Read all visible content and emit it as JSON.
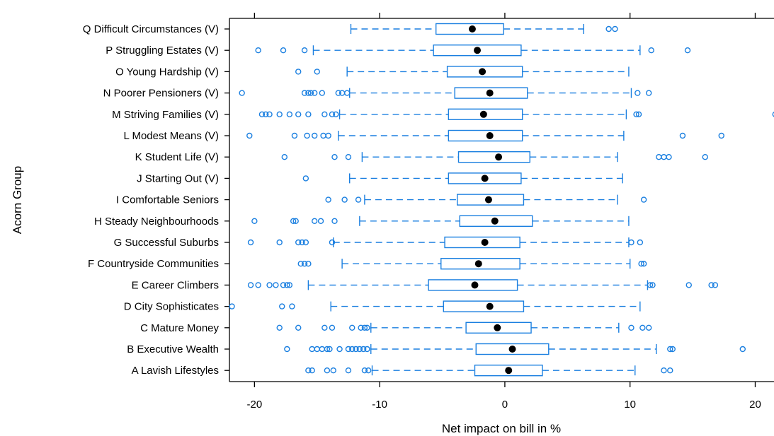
{
  "chart_data": {
    "type": "boxplot",
    "xlabel": "Net impact on bill in %",
    "ylabel": "Acorn Group",
    "xlim": [
      -22,
      21.5
    ],
    "xticks": [
      -20,
      -10,
      0,
      10,
      20
    ],
    "xtick_labels": [
      "-20",
      "-10",
      "0",
      "10",
      "20"
    ],
    "colors": {
      "box": "#1a7fe0",
      "median": "#000000",
      "frame": "#000000"
    },
    "categories": [
      "Q Difficult Circumstances (V)",
      "P Struggling Estates (V)",
      "O Young Hardship (V)",
      "N Poorer Pensioners (V)",
      "M Striving Families (V)",
      "L Modest Means (V)",
      "K Student Life (V)",
      "J Starting Out (V)",
      "I Comfortable Seniors",
      "H Steady Neighbourhoods",
      "G Successful Suburbs",
      "F Countryside Communities",
      "E Career Climbers",
      "D City Sophisticates",
      "C Mature Money",
      "B Executive Wealth",
      "A Lavish Lifestyles"
    ],
    "boxes": [
      {
        "whisker_low": -12.3,
        "q1": -5.5,
        "median": -2.6,
        "q3": -0.1,
        "whisker_high": 6.3,
        "outliers": [
          8.3,
          8.8
        ]
      },
      {
        "whisker_low": -15.3,
        "q1": -5.7,
        "median": -2.2,
        "q3": 1.3,
        "whisker_high": 10.8,
        "outliers": [
          -19.7,
          -17.7,
          -16.0,
          11.7,
          14.6
        ]
      },
      {
        "whisker_low": -12.6,
        "q1": -4.6,
        "median": -1.8,
        "q3": 1.4,
        "whisker_high": 9.9,
        "outliers": [
          -16.5,
          -15.0
        ]
      },
      {
        "whisker_low": -12.4,
        "q1": -4.0,
        "median": -1.2,
        "q3": 1.8,
        "whisker_high": 10.1,
        "outliers": [
          -21.0,
          -16.0,
          -15.7,
          -15.5,
          -15.2,
          -14.6,
          -13.3,
          -13.0,
          -12.6,
          10.6,
          11.5
        ]
      },
      {
        "whisker_low": -13.2,
        "q1": -4.5,
        "median": -1.7,
        "q3": 1.4,
        "whisker_high": 9.7,
        "outliers": [
          -19.4,
          -19.1,
          -18.8,
          -18.0,
          -17.2,
          -16.5,
          -15.7,
          -14.4,
          -13.8,
          -13.5,
          10.5,
          10.7,
          21.6
        ]
      },
      {
        "whisker_low": -13.3,
        "q1": -4.5,
        "median": -1.2,
        "q3": 1.4,
        "whisker_high": 9.5,
        "outliers": [
          -20.4,
          -16.8,
          -15.8,
          -15.2,
          -14.5,
          -14.1,
          14.2,
          17.3
        ]
      },
      {
        "whisker_low": -11.4,
        "q1": -3.7,
        "median": -0.5,
        "q3": 2.0,
        "whisker_high": 9.0,
        "outliers": [
          -17.6,
          -13.6,
          -12.5,
          12.3,
          12.7,
          13.1,
          16.0
        ]
      },
      {
        "whisker_low": -12.4,
        "q1": -4.5,
        "median": -1.6,
        "q3": 1.3,
        "whisker_high": 9.4,
        "outliers": [
          -15.9
        ]
      },
      {
        "whisker_low": -11.2,
        "q1": -3.8,
        "median": -1.3,
        "q3": 1.5,
        "whisker_high": 9.0,
        "outliers": [
          -14.1,
          -12.8,
          -11.7,
          11.1
        ]
      },
      {
        "whisker_low": -11.6,
        "q1": -3.6,
        "median": -0.8,
        "q3": 2.2,
        "whisker_high": 9.9,
        "outliers": [
          -20.0,
          -16.9,
          -16.7,
          -15.2,
          -14.7,
          -13.6
        ]
      },
      {
        "whisker_low": -13.7,
        "q1": -4.8,
        "median": -1.6,
        "q3": 1.2,
        "whisker_high": 9.9,
        "outliers": [
          -20.3,
          -18.0,
          -16.5,
          -16.2,
          -15.9,
          -13.8,
          10.1,
          10.8
        ]
      },
      {
        "whisker_low": -13.0,
        "q1": -5.1,
        "median": -2.1,
        "q3": 1.2,
        "whisker_high": 10.0,
        "outliers": [
          -16.3,
          -16.0,
          -15.7,
          10.9,
          11.1
        ]
      },
      {
        "whisker_low": -15.7,
        "q1": -6.1,
        "median": -2.4,
        "q3": 1.0,
        "whisker_high": 11.4,
        "outliers": [
          -20.3,
          -19.7,
          -18.8,
          -18.3,
          -17.7,
          -17.4,
          -17.2,
          11.6,
          11.8,
          14.7,
          16.5,
          16.8
        ]
      },
      {
        "whisker_low": -13.9,
        "q1": -4.9,
        "median": -1.2,
        "q3": 1.5,
        "whisker_high": 10.8,
        "outliers": [
          -21.8,
          -17.8,
          -17.0
        ]
      },
      {
        "whisker_low": -10.7,
        "q1": -3.1,
        "median": -0.6,
        "q3": 2.1,
        "whisker_high": 9.1,
        "outliers": [
          -18.0,
          -16.5,
          -14.4,
          -13.8,
          -12.2,
          -11.5,
          -11.2,
          -11.0,
          10.1,
          11.0,
          11.5
        ]
      },
      {
        "whisker_low": -10.7,
        "q1": -2.3,
        "median": 0.6,
        "q3": 3.5,
        "whisker_high": 12.1,
        "outliers": [
          -17.4,
          -15.4,
          -15.0,
          -14.6,
          -14.2,
          -14.0,
          -13.2,
          -12.5,
          -12.2,
          -11.9,
          -11.6,
          -11.3,
          -11.0,
          13.2,
          13.4,
          19.0
        ]
      },
      {
        "whisker_low": -10.6,
        "q1": -2.4,
        "median": 0.3,
        "q3": 3.0,
        "whisker_high": 10.4,
        "outliers": [
          -15.7,
          -15.4,
          -14.2,
          -13.7,
          -12.5,
          -11.2,
          -10.9,
          12.7,
          13.2
        ]
      }
    ]
  }
}
